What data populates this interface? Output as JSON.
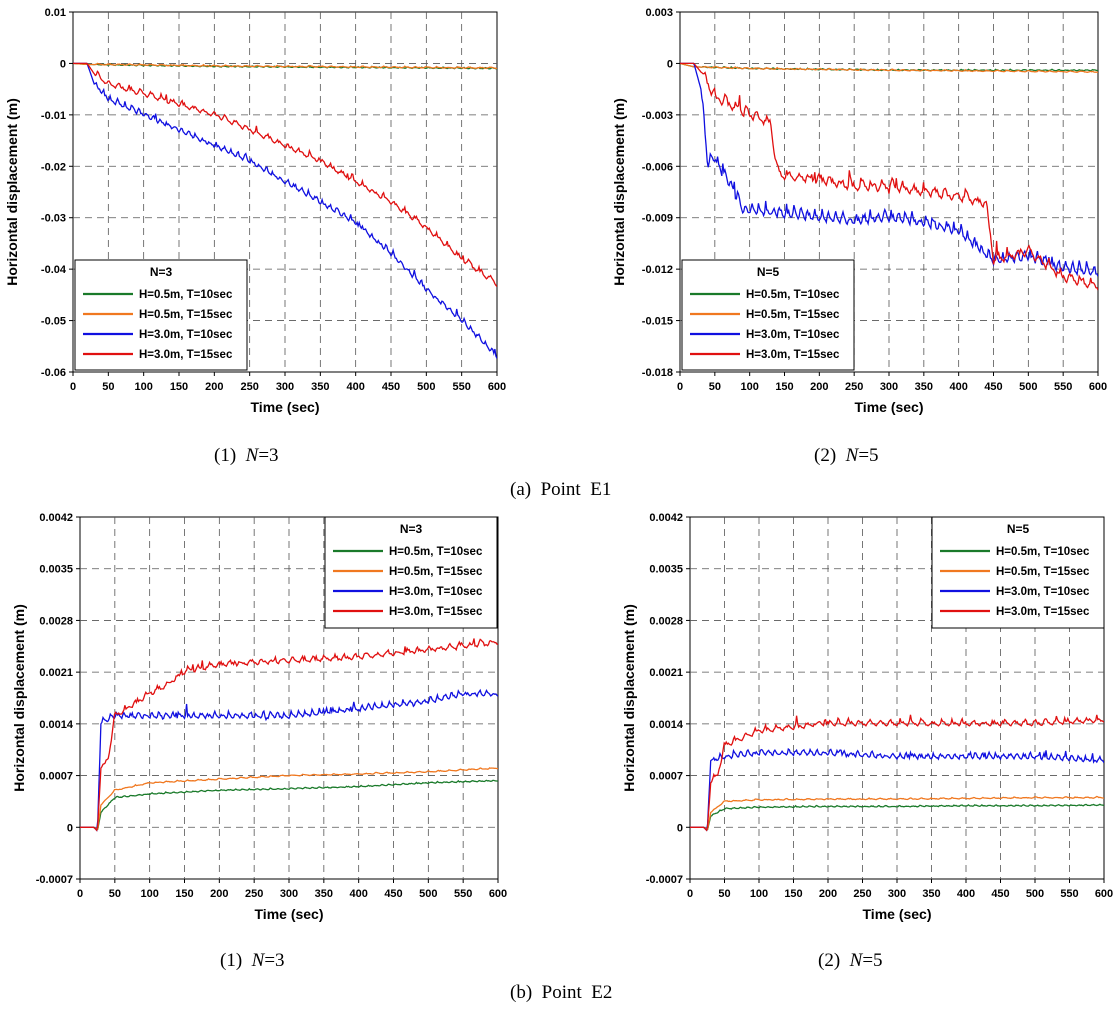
{
  "figure": {
    "group_a_caption": "(a)  Point  E1",
    "group_b_caption": "(b)  Point  E2"
  },
  "colors": {
    "green": "#1a7a2a",
    "orange": "#f07820",
    "blue": "#1010e0",
    "red": "#e01010",
    "grid": "#555555"
  },
  "chart_data": [
    {
      "id": "a1",
      "type": "line",
      "caption_prefix": "(1)  ",
      "caption_var": "N",
      "caption_suffix": "=3",
      "xlabel": "Time (sec)",
      "ylabel": "Horizontal displacement (m)",
      "xlim": [
        0,
        600
      ],
      "ylim": [
        -0.06,
        0.01
      ],
      "xticks": [
        0,
        50,
        100,
        150,
        200,
        250,
        300,
        350,
        400,
        450,
        500,
        550,
        600
      ],
      "yticks": [
        0.01,
        0,
        -0.01,
        -0.02,
        -0.03,
        -0.04,
        -0.05,
        -0.06
      ],
      "ytick_labels": [
        "0.01",
        "0",
        "-0.01",
        "-0.02",
        "-0.03",
        "-0.04",
        "-0.05",
        "-0.06"
      ],
      "legend_position": "bottom-left",
      "legend_title": "N=3",
      "series": [
        {
          "name": "H=0.5m, T=10sec",
          "color": "#1a7a2a",
          "x": [
            0,
            20,
            100,
            200,
            300,
            400,
            500,
            600
          ],
          "y": [
            0,
            -0.0002,
            -0.0004,
            -0.0006,
            -0.0007,
            -0.0008,
            -0.0009,
            -0.001
          ]
        },
        {
          "name": "H=0.5m, T=15sec",
          "color": "#f07820",
          "x": [
            0,
            20,
            100,
            200,
            300,
            400,
            500,
            600
          ],
          "y": [
            0,
            -0.0002,
            -0.0003,
            -0.0005,
            -0.0006,
            -0.0007,
            -0.0008,
            -0.0009
          ]
        },
        {
          "name": "H=3.0m, T=10sec",
          "color": "#1010e0",
          "x": [
            0,
            20,
            30,
            50,
            100,
            150,
            200,
            250,
            300,
            350,
            400,
            450,
            500,
            550,
            600
          ],
          "y": [
            0,
            0,
            -0.004,
            -0.007,
            -0.01,
            -0.013,
            -0.016,
            -0.019,
            -0.023,
            -0.027,
            -0.031,
            -0.037,
            -0.044,
            -0.05,
            -0.057
          ]
        },
        {
          "name": "H=3.0m, T=15sec",
          "color": "#e01010",
          "x": [
            0,
            20,
            30,
            50,
            100,
            150,
            200,
            250,
            300,
            350,
            400,
            450,
            500,
            550,
            600
          ],
          "y": [
            0,
            0,
            -0.002,
            -0.004,
            -0.006,
            -0.008,
            -0.01,
            -0.013,
            -0.016,
            -0.019,
            -0.023,
            -0.027,
            -0.032,
            -0.038,
            -0.043
          ]
        }
      ]
    },
    {
      "id": "a2",
      "type": "line",
      "caption_prefix": "(2)  ",
      "caption_var": "N",
      "caption_suffix": "=5",
      "xlabel": "Time (sec)",
      "ylabel": "Horizontal displacement (m)",
      "xlim": [
        0,
        600
      ],
      "ylim": [
        -0.018,
        0.003
      ],
      "xticks": [
        0,
        50,
        100,
        150,
        200,
        250,
        300,
        350,
        400,
        450,
        500,
        550,
        600
      ],
      "yticks": [
        0.003,
        0,
        -0.003,
        -0.006,
        -0.009,
        -0.012,
        -0.015,
        -0.018
      ],
      "ytick_labels": [
        "0.003",
        "0",
        "-0.003",
        "-0.006",
        "-0.009",
        "-0.012",
        "-0.015",
        "-0.018"
      ],
      "legend_position": "bottom-left",
      "legend_title": "N=5",
      "series": [
        {
          "name": "H=0.5m, T=10sec",
          "color": "#1a7a2a",
          "x": [
            0,
            20,
            100,
            300,
            600
          ],
          "y": [
            0,
            -0.0002,
            -0.0003,
            -0.0004,
            -0.0004
          ]
        },
        {
          "name": "H=0.5m, T=15sec",
          "color": "#f07820",
          "x": [
            0,
            20,
            100,
            300,
            600
          ],
          "y": [
            0,
            -0.0002,
            -0.0003,
            -0.0004,
            -0.0005
          ]
        },
        {
          "name": "H=3.0m, T=10sec",
          "color": "#1010e0",
          "x": [
            0,
            20,
            30,
            40,
            50,
            90,
            150,
            200,
            250,
            300,
            350,
            400,
            450,
            500,
            550,
            600
          ],
          "y": [
            0,
            0,
            -0.0015,
            -0.006,
            -0.0055,
            -0.0085,
            -0.0088,
            -0.009,
            -0.0092,
            -0.009,
            -0.0093,
            -0.0098,
            -0.0115,
            -0.0113,
            -0.012,
            -0.0122
          ]
        },
        {
          "name": "H=3.0m, T=15sec",
          "color": "#e01010",
          "x": [
            0,
            20,
            30,
            50,
            100,
            130,
            140,
            200,
            250,
            300,
            350,
            400,
            440,
            450,
            500,
            550,
            600
          ],
          "y": [
            0,
            0,
            -0.0005,
            -0.002,
            -0.003,
            -0.0035,
            -0.0065,
            -0.0068,
            -0.0072,
            -0.0072,
            -0.0075,
            -0.0078,
            -0.0082,
            -0.0115,
            -0.011,
            -0.0125,
            -0.013
          ]
        }
      ]
    },
    {
      "id": "b1",
      "type": "line",
      "caption_prefix": "(1)  ",
      "caption_var": "N",
      "caption_suffix": "=3",
      "xlabel": "Time (sec)",
      "ylabel": "Horizontal displacement (m)",
      "xlim": [
        0,
        600
      ],
      "ylim": [
        -0.0007,
        0.0042
      ],
      "xticks": [
        0,
        50,
        100,
        150,
        200,
        250,
        300,
        350,
        400,
        450,
        500,
        550,
        600
      ],
      "yticks": [
        0.0042,
        0.0035,
        0.0028,
        0.0021,
        0.0014,
        0.0007,
        0,
        -0.0007
      ],
      "ytick_labels": [
        "0.0042",
        "0.0035",
        "0.0028",
        "0.0021",
        "0.0014",
        "0.0007",
        "0",
        "-0.0007"
      ],
      "legend_position": "top-right",
      "legend_title": "N=3",
      "series": [
        {
          "name": "H=0.5m, T=10sec",
          "color": "#1a7a2a",
          "x": [
            0,
            20,
            25,
            30,
            50,
            100,
            200,
            300,
            400,
            500,
            600
          ],
          "y": [
            0,
            0,
            -5e-05,
            0.0002,
            0.0004,
            0.00045,
            0.0005,
            0.00052,
            0.00055,
            0.0006,
            0.00063
          ]
        },
        {
          "name": "H=0.5m, T=15sec",
          "color": "#f07820",
          "x": [
            0,
            20,
            25,
            30,
            50,
            100,
            200,
            300,
            400,
            500,
            600
          ],
          "y": [
            0,
            0,
            -5e-05,
            0.0003,
            0.0005,
            0.0006,
            0.00065,
            0.0007,
            0.00072,
            0.00075,
            0.0008
          ]
        },
        {
          "name": "H=3.0m, T=10sec",
          "color": "#1010e0",
          "x": [
            0,
            20,
            25,
            30,
            50,
            100,
            200,
            300,
            400,
            500,
            550,
            600
          ],
          "y": [
            0,
            0,
            -5e-05,
            0.0014,
            0.0015,
            0.0015,
            0.0015,
            0.0015,
            0.0016,
            0.0017,
            0.0018,
            0.0018
          ]
        },
        {
          "name": "H=3.0m, T=15sec",
          "color": "#e01010",
          "x": [
            0,
            20,
            25,
            30,
            40,
            50,
            100,
            120,
            150,
            200,
            300,
            400,
            500,
            600
          ],
          "y": [
            0,
            0,
            -5e-05,
            0.0008,
            0.0009,
            0.0015,
            0.0018,
            0.0019,
            0.0021,
            0.0022,
            0.00225,
            0.0023,
            0.0024,
            0.0025
          ]
        }
      ]
    },
    {
      "id": "b2",
      "type": "line",
      "caption_prefix": "(2)  ",
      "caption_var": "N",
      "caption_suffix": "=5",
      "xlabel": "Time (sec)",
      "ylabel": "Horizontal displacement (m)",
      "xlim": [
        0,
        600
      ],
      "ylim": [
        -0.0007,
        0.0042
      ],
      "xticks": [
        0,
        50,
        100,
        150,
        200,
        250,
        300,
        350,
        400,
        450,
        500,
        550,
        600
      ],
      "yticks": [
        0.0042,
        0.0035,
        0.0028,
        0.0021,
        0.0014,
        0.0007,
        0,
        -0.0007
      ],
      "ytick_labels": [
        "0.0042",
        "0.0035",
        "0.0028",
        "0.0021",
        "0.0014",
        "0.0007",
        "0",
        "-0.0007"
      ],
      "legend_position": "top-right",
      "legend_title": "N=5",
      "series": [
        {
          "name": "H=0.5m, T=10sec",
          "color": "#1a7a2a",
          "x": [
            0,
            20,
            25,
            30,
            50,
            100,
            200,
            300,
            400,
            500,
            600
          ],
          "y": [
            0,
            0,
            -5e-05,
            0.00015,
            0.00025,
            0.00027,
            0.00028,
            0.00028,
            0.00029,
            0.00029,
            0.0003
          ]
        },
        {
          "name": "H=0.5m, T=15sec",
          "color": "#f07820",
          "x": [
            0,
            20,
            25,
            30,
            50,
            100,
            200,
            300,
            400,
            500,
            600
          ],
          "y": [
            0,
            0,
            -5e-05,
            0.0002,
            0.00035,
            0.00037,
            0.00038,
            0.00038,
            0.00039,
            0.0004,
            0.0004
          ]
        },
        {
          "name": "H=3.0m, T=10sec",
          "color": "#1010e0",
          "x": [
            0,
            20,
            25,
            30,
            50,
            100,
            200,
            300,
            400,
            500,
            600
          ],
          "y": [
            0,
            0,
            -5e-05,
            0.0009,
            0.00095,
            0.001,
            0.001,
            0.00095,
            0.00095,
            0.00095,
            0.0009
          ]
        },
        {
          "name": "H=3.0m, T=15sec",
          "color": "#e01010",
          "x": [
            0,
            20,
            25,
            30,
            40,
            50,
            100,
            200,
            300,
            400,
            500,
            600
          ],
          "y": [
            0,
            0,
            -5e-05,
            0.0006,
            0.0007,
            0.0011,
            0.0013,
            0.0014,
            0.0014,
            0.0014,
            0.0014,
            0.00145
          ]
        }
      ]
    }
  ]
}
